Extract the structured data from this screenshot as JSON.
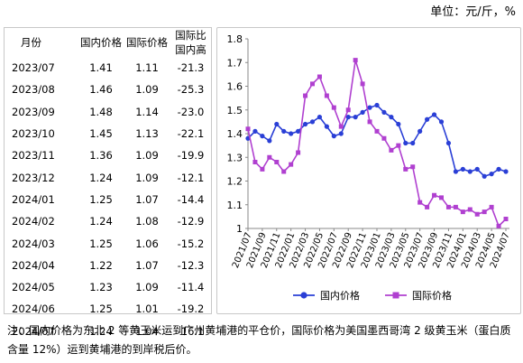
{
  "unit": "单位：元/斤，%",
  "table": {
    "headers": [
      "月份",
      "国内价格",
      "国际价格",
      "国际比国内高"
    ],
    "rows": [
      [
        "2023/07",
        "1.41",
        "1.11",
        "-21.3"
      ],
      [
        "2023/08",
        "1.46",
        "1.09",
        "-25.3"
      ],
      [
        "2023/09",
        "1.48",
        "1.14",
        "-23.0"
      ],
      [
        "2023/10",
        "1.45",
        "1.13",
        "-22.1"
      ],
      [
        "2023/11",
        "1.36",
        "1.09",
        "-19.9"
      ],
      [
        "2023/12",
        "1.24",
        "1.09",
        "-12.1"
      ],
      [
        "2024/01",
        "1.25",
        "1.07",
        "-14.4"
      ],
      [
        "2024/02",
        "1.24",
        "1.08",
        "-12.9"
      ],
      [
        "2024/03",
        "1.25",
        "1.06",
        "-15.2"
      ],
      [
        "2024/04",
        "1.22",
        "1.07",
        "-12.3"
      ],
      [
        "2024/05",
        "1.23",
        "1.09",
        "-11.4"
      ],
      [
        "2024/06",
        "1.25",
        "1.01",
        "-19.2"
      ],
      [
        "2024/07",
        "1.24",
        "1.04",
        "-16.1"
      ]
    ]
  },
  "chart_data": {
    "type": "line",
    "title": "",
    "xlabel": "",
    "ylabel": "",
    "ylim": [
      1.0,
      1.8
    ],
    "yticks": [
      "1",
      "1.1",
      "1.2",
      "1.3",
      "1.4",
      "1.5",
      "1.6",
      "1.7",
      "1.8"
    ],
    "x_tick_labels": [
      "2021/07",
      "2021/09",
      "2021/11",
      "2022/01",
      "2022/03",
      "2022/05",
      "2022/07",
      "2022/09",
      "2022/11",
      "2023/01",
      "2023/03",
      "2023/05",
      "2023/07",
      "2023/09",
      "2023/11",
      "2024/01",
      "2024/03",
      "2024/05",
      "2024/07"
    ],
    "legend_position": "bottom",
    "series": [
      {
        "name": "国内价格",
        "color": "#2a3fd6",
        "marker": "circle",
        "values": [
          1.38,
          1.41,
          1.39,
          1.37,
          1.44,
          1.41,
          1.4,
          1.41,
          1.44,
          1.45,
          1.47,
          1.43,
          1.39,
          1.4,
          1.47,
          1.47,
          1.49,
          1.51,
          1.52,
          1.49,
          1.47,
          1.44,
          1.36,
          1.36,
          1.41,
          1.46,
          1.48,
          1.45,
          1.36,
          1.24,
          1.25,
          1.24,
          1.25,
          1.22,
          1.23,
          1.25,
          1.24
        ]
      },
      {
        "name": "国际价格",
        "color": "#b040d0",
        "marker": "square",
        "values": [
          1.42,
          1.28,
          1.25,
          1.3,
          1.28,
          1.24,
          1.27,
          1.32,
          1.56,
          1.61,
          1.64,
          1.56,
          1.51,
          1.43,
          1.5,
          1.71,
          1.61,
          1.45,
          1.41,
          1.38,
          1.33,
          1.35,
          1.25,
          1.26,
          1.11,
          1.09,
          1.14,
          1.13,
          1.09,
          1.09,
          1.07,
          1.08,
          1.06,
          1.07,
          1.09,
          1.01,
          1.04
        ]
      }
    ]
  },
  "note": "注：国内价格为东北 2 等黄玉米运到广州黄埔港的平仓价，国际价格为美国墨西哥湾 2 级黄玉米（蛋白质含量 12%）运到黄埔港的到岸税后价。"
}
